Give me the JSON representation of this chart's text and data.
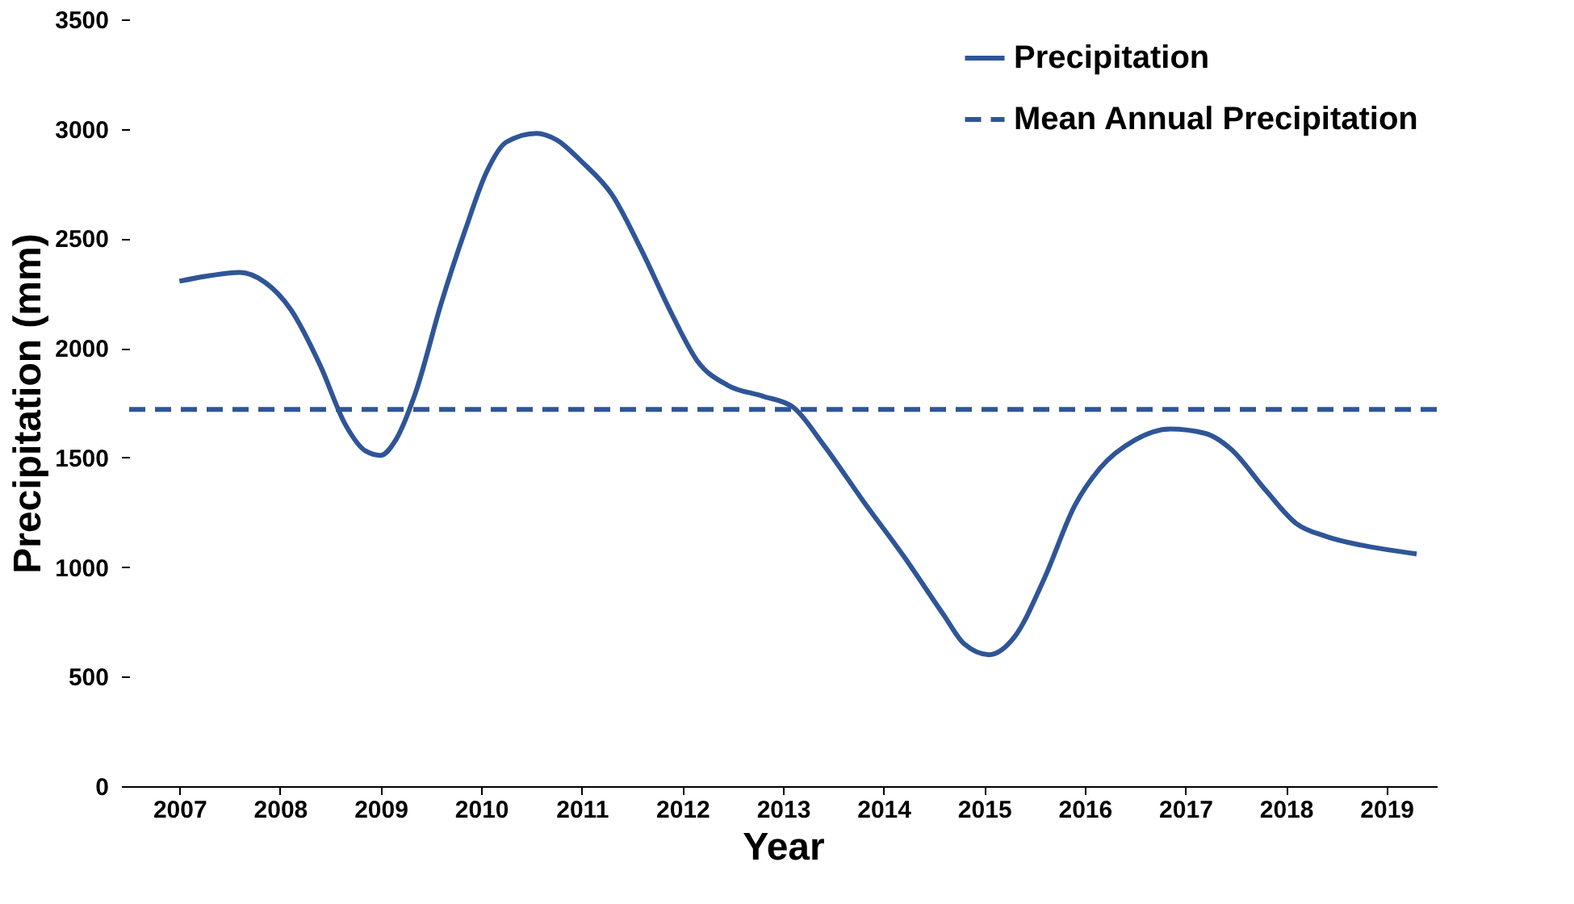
{
  "chart_data": {
    "type": "line",
    "xlabel": "Year",
    "ylabel": "Precipitation (mm)",
    "xlim": [
      2006.5,
      2019.5
    ],
    "xticks": [
      2007,
      2008,
      2009,
      2010,
      2011,
      2012,
      2013,
      2014,
      2015,
      2016,
      2017,
      2018,
      2019
    ],
    "ylim": [
      0,
      3500
    ],
    "yticks": [
      0,
      500,
      1000,
      1500,
      2000,
      2500,
      3000,
      3500
    ],
    "grid": false,
    "legend": "top right",
    "marker": "none",
    "series": [
      {
        "name": "Precipitation",
        "color": "#2f5597",
        "line_style": "solid",
        "x": [
          2007.0,
          2007.3,
          2007.6,
          2007.85,
          2008.1,
          2008.4,
          2008.65,
          2008.85,
          2009.0,
          2009.15,
          2009.35,
          2009.6,
          2009.85,
          2010.05,
          2010.25,
          2010.55,
          2010.75,
          2011.0,
          2011.3,
          2011.6,
          2011.9,
          2012.15,
          2012.45,
          2012.8,
          2013.1,
          2013.4,
          2013.8,
          2014.2,
          2014.6,
          2014.8,
          2015.05,
          2015.3,
          2015.6,
          2015.9,
          2016.15,
          2016.5,
          2016.85,
          2017.2,
          2017.45,
          2017.8,
          2018.1,
          2018.4,
          2018.75,
          2019.0,
          2019.3
        ],
        "values": [
          2305,
          2330,
          2345,
          2300,
          2180,
          1920,
          1650,
          1530,
          1510,
          1580,
          1800,
          2200,
          2550,
          2800,
          2940,
          2980,
          2950,
          2850,
          2700,
          2440,
          2150,
          1940,
          1830,
          1780,
          1730,
          1560,
          1300,
          1050,
          780,
          650,
          600,
          680,
          950,
          1280,
          1450,
          1580,
          1630,
          1610,
          1540,
          1350,
          1200,
          1140,
          1100,
          1080,
          1060
        ]
      },
      {
        "name": "Mean Annual Precipitation",
        "color": "#2f5597",
        "line_style": "dashed",
        "x": [
          2006.5,
          2019.5
        ],
        "values": [
          1720,
          1720
        ]
      }
    ]
  }
}
